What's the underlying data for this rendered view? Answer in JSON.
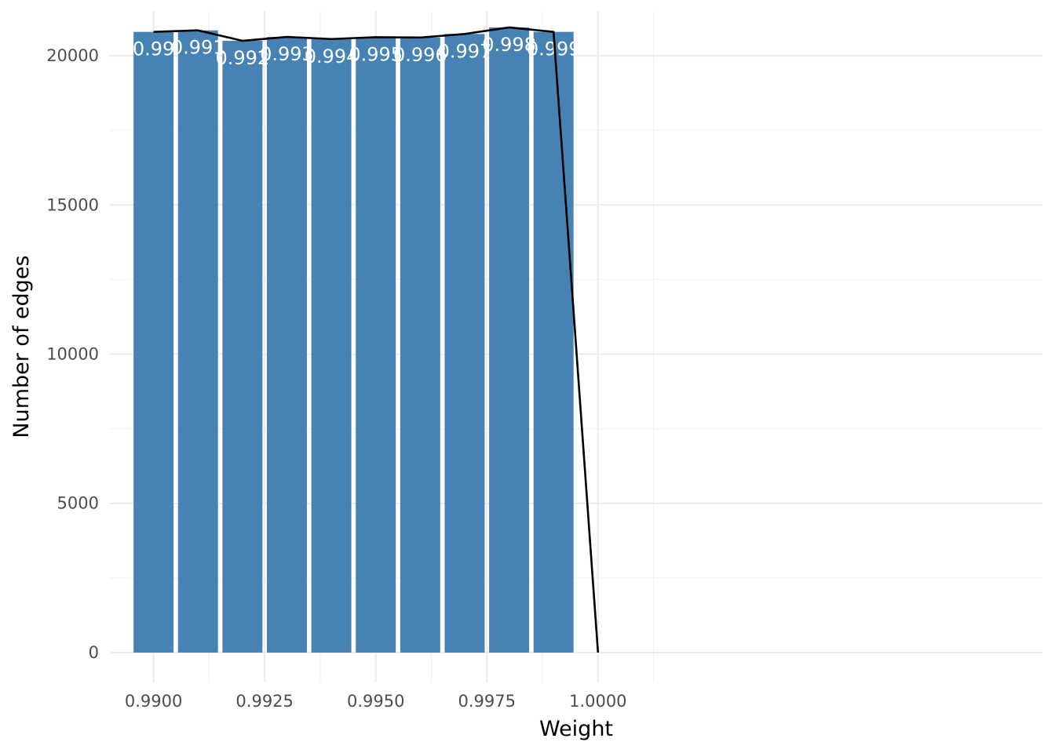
{
  "chart_data": {
    "type": "bar",
    "title": "",
    "xlabel": "Weight",
    "ylabel": "Number of edges",
    "categories": [
      "0.99",
      "0.991",
      "0.992",
      "0.993",
      "0.994",
      "0.995",
      "0.996",
      "0.997",
      "0.998",
      "0.999"
    ],
    "x": [
      0.99,
      0.991,
      0.992,
      0.993,
      0.994,
      0.995,
      0.996,
      0.997,
      0.998,
      0.999
    ],
    "values": [
      20800,
      20850,
      20500,
      20630,
      20560,
      20620,
      20610,
      20730,
      20950,
      20800
    ],
    "bar_width": 0.0009,
    "line": {
      "x": [
        0.99,
        0.991,
        0.992,
        0.993,
        0.994,
        0.995,
        0.996,
        0.997,
        0.998,
        0.999,
        1.0
      ],
      "y": [
        20800,
        20850,
        20500,
        20630,
        20560,
        20620,
        20610,
        20730,
        20950,
        20800,
        0
      ]
    },
    "xlim": [
      0.989,
      1.01
    ],
    "ylim": [
      -1000,
      21500
    ],
    "xticks": [
      0.99,
      0.9925,
      0.995,
      0.9975,
      1.0
    ],
    "xtick_labels": [
      "0.9900",
      "0.9925",
      "0.9950",
      "0.9975",
      "1.0000"
    ],
    "yticks": [
      0,
      5000,
      10000,
      15000,
      20000
    ],
    "ytick_labels": [
      "0",
      "5000",
      "10000",
      "15000",
      "20000"
    ],
    "grid": true,
    "legend": "none",
    "colors": {
      "bar": "#4682b4",
      "line": "#000000",
      "bar_label": "#ffffff"
    }
  }
}
